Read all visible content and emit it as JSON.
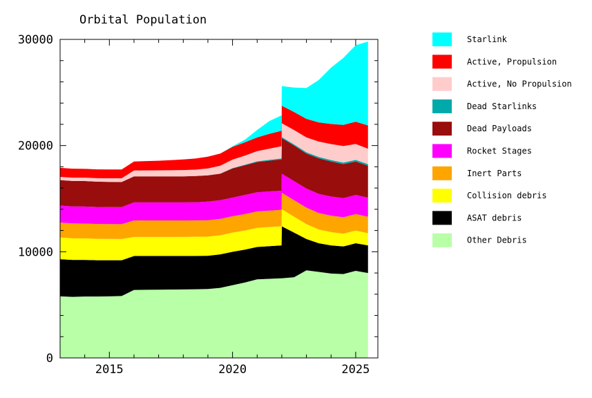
{
  "chart_data": {
    "type": "area",
    "title": "Orbital Population",
    "xlabel": "",
    "ylabel": "",
    "xlim": [
      2013.0,
      2025.9
    ],
    "ylim": [
      0,
      30000
    ],
    "x_ticks": [
      2015,
      2020,
      2025
    ],
    "y_ticks": [
      0,
      10000,
      20000,
      30000
    ],
    "grid": false,
    "legend_position": "right",
    "stacked": true,
    "x": [
      2013.0,
      2013.5,
      2014.0,
      2014.5,
      2015.0,
      2015.5,
      2016.0,
      2016.5,
      2017.0,
      2017.5,
      2018.0,
      2018.5,
      2019.0,
      2019.5,
      2020.0,
      2020.5,
      2021.0,
      2021.5,
      2021.99,
      2022.0,
      2022.5,
      2023.0,
      2023.5,
      2024.0,
      2024.5,
      2025.0,
      2025.5
    ],
    "series": [
      {
        "name": "Other Debris",
        "color": "#b8ffa8",
        "values": [
          5800,
          5750,
          5780,
          5780,
          5800,
          5830,
          6400,
          6420,
          6430,
          6440,
          6450,
          6470,
          6490,
          6600,
          6850,
          7100,
          7400,
          7450,
          7500,
          7500,
          7600,
          8250,
          8100,
          7950,
          7900,
          8200,
          8000
        ]
      },
      {
        "name": "ASAT debris",
        "color": "#000000",
        "values": [
          3500,
          3480,
          3450,
          3420,
          3400,
          3370,
          3200,
          3180,
          3170,
          3160,
          3150,
          3140,
          3130,
          3150,
          3150,
          3100,
          3050,
          3080,
          3100,
          4900,
          4200,
          2950,
          2700,
          2650,
          2600,
          2600,
          2600
        ]
      },
      {
        "name": "Collision debris",
        "color": "#ffff00",
        "values": [
          2050,
          2040,
          2030,
          2020,
          2010,
          2000,
          1800,
          1800,
          1800,
          1800,
          1800,
          1800,
          1800,
          1800,
          1800,
          1800,
          1800,
          1800,
          1800,
          1600,
          1500,
          1400,
          1300,
          1250,
          1200,
          1200,
          1150
        ]
      },
      {
        "name": "Inert Parts",
        "color": "#ffa500",
        "values": [
          1400,
          1400,
          1400,
          1400,
          1400,
          1400,
          1550,
          1550,
          1550,
          1550,
          1550,
          1550,
          1550,
          1550,
          1550,
          1550,
          1550,
          1550,
          1550,
          1550,
          1550,
          1550,
          1550,
          1550,
          1550,
          1550,
          1550
        ]
      },
      {
        "name": "Rocket Stages",
        "color": "#ff00ff",
        "values": [
          1600,
          1600,
          1600,
          1600,
          1600,
          1600,
          1700,
          1700,
          1700,
          1700,
          1700,
          1700,
          1750,
          1750,
          1750,
          1800,
          1800,
          1800,
          1800,
          1800,
          1800,
          1800,
          1800,
          1800,
          1800,
          1800,
          1800
        ]
      },
      {
        "name": "Dead Payloads",
        "color": "#990d0d",
        "values": [
          2400,
          2400,
          2400,
          2380,
          2370,
          2370,
          2450,
          2450,
          2450,
          2450,
          2450,
          2470,
          2480,
          2500,
          2750,
          2800,
          2850,
          2900,
          2950,
          3350,
          3350,
          3300,
          3350,
          3300,
          3200,
          3150,
          3000
        ]
      },
      {
        "name": "Dead Starlinks",
        "color": "#00aaaa",
        "values": [
          0,
          0,
          0,
          0,
          0,
          0,
          0,
          0,
          0,
          0,
          0,
          0,
          0,
          0,
          30,
          50,
          70,
          80,
          90,
          100,
          110,
          120,
          130,
          140,
          150,
          150,
          150
        ]
      },
      {
        "name": "Active, No Propulsion",
        "color": "#ffcccc",
        "values": [
          300,
          310,
          320,
          330,
          340,
          350,
          550,
          560,
          570,
          580,
          590,
          600,
          650,
          750,
          800,
          850,
          950,
          1050,
          1150,
          1300,
          1350,
          1400,
          1450,
          1500,
          1550,
          1500,
          1450
        ]
      },
      {
        "name": "Active, Propulsion",
        "color": "#ff0000",
        "values": [
          850,
          840,
          830,
          830,
          830,
          830,
          850,
          880,
          900,
          950,
          1000,
          1050,
          1100,
          1150,
          1200,
          1250,
          1300,
          1400,
          1450,
          1650,
          1700,
          1750,
          1800,
          1900,
          2000,
          2100,
          2200
        ]
      },
      {
        "name": "Starlink",
        "color": "#00ffff",
        "values": [
          0,
          0,
          0,
          0,
          0,
          0,
          0,
          0,
          0,
          0,
          0,
          0,
          0,
          0,
          50,
          250,
          700,
          1200,
          1450,
          1850,
          2300,
          2900,
          4000,
          5300,
          6300,
          7200,
          7900
        ]
      }
    ]
  }
}
